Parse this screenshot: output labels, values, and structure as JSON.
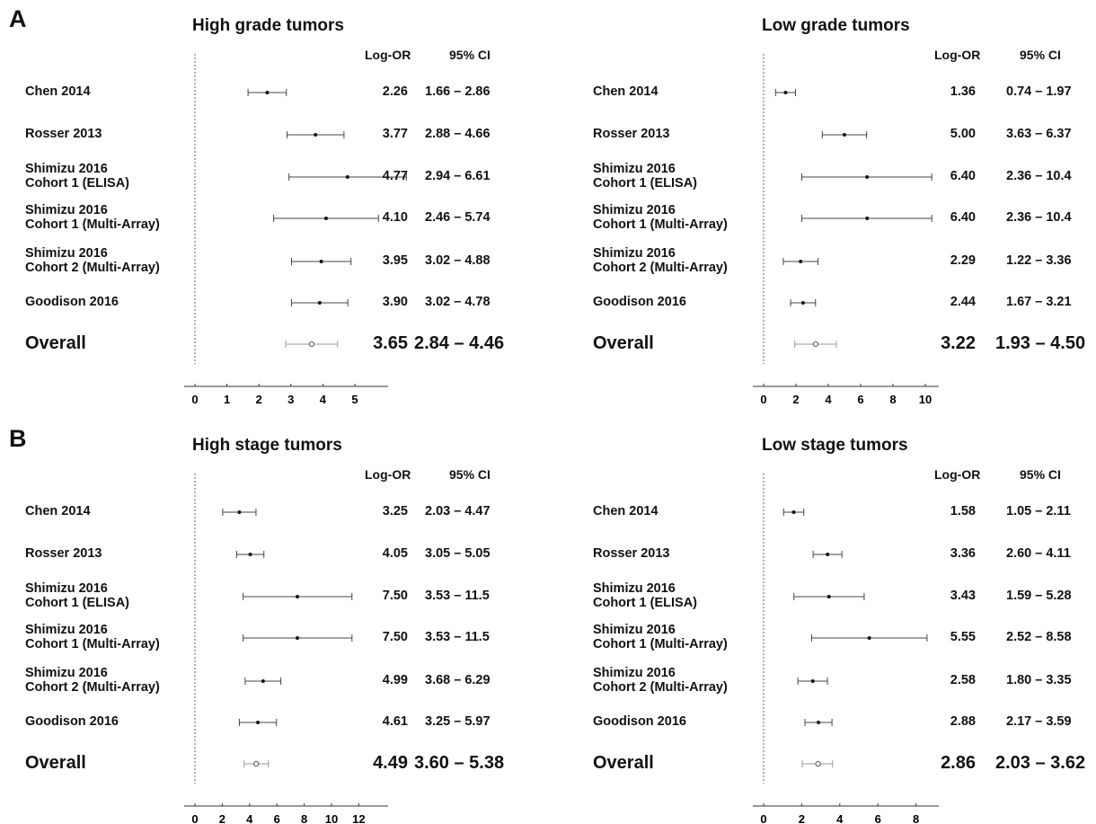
{
  "panels": [
    {
      "letter": "A",
      "forests": [
        {
          "title": "High grade tumors",
          "header_logor": "Log-OR",
          "header_ci": "95% CI",
          "axis_ticks": [
            0,
            1,
            2,
            3,
            4,
            5
          ],
          "axis_tick_labels": [
            "0",
            "1",
            "2",
            "3",
            "4",
            "5"
          ],
          "rows": [
            {
              "study": [
                "Chen 2014"
              ],
              "logor": 2.26,
              "lo": 1.66,
              "hi": 2.86,
              "logor_text": "2.26",
              "ci_text": "1.66 – 2.86"
            },
            {
              "study": [
                "Rosser 2013"
              ],
              "logor": 3.77,
              "lo": 2.88,
              "hi": 4.66,
              "logor_text": "3.77",
              "ci_text": "2.88 – 4.66"
            },
            {
              "study": [
                "Shimizu 2016",
                "Cohort 1 (ELISA)"
              ],
              "logor": 4.77,
              "lo": 2.94,
              "hi": 6.61,
              "logor_text": "4.77",
              "ci_text": "2.94 – 6.61"
            },
            {
              "study": [
                "Shimizu 2016",
                "Cohort 1 (Multi-Array)"
              ],
              "logor": 4.1,
              "lo": 2.46,
              "hi": 5.74,
              "logor_text": "4.10",
              "ci_text": "2.46 – 5.74"
            },
            {
              "study": [
                "Shimizu 2016",
                "Cohort 2 (Multi-Array)"
              ],
              "logor": 3.95,
              "lo": 3.02,
              "hi": 4.88,
              "logor_text": "3.95",
              "ci_text": "3.02 – 4.88"
            },
            {
              "study": [
                "Goodison 2016"
              ],
              "logor": 3.9,
              "lo": 3.02,
              "hi": 4.78,
              "logor_text": "3.90",
              "ci_text": "3.02 – 4.78"
            }
          ],
          "overall": {
            "study": [
              "Overall"
            ],
            "logor": 3.65,
            "lo": 2.84,
            "hi": 4.46,
            "logor_text": "3.65",
            "ci_text": "2.84 – 4.46"
          }
        },
        {
          "title": "Low grade tumors",
          "header_logor": "Log-OR",
          "header_ci": "95% CI",
          "axis_ticks": [
            0,
            2,
            4,
            6,
            8,
            10
          ],
          "axis_tick_labels": [
            "0",
            "2",
            "4",
            "6",
            "8",
            "10"
          ],
          "rows": [
            {
              "study": [
                "Chen 2014"
              ],
              "logor": 1.36,
              "lo": 0.74,
              "hi": 1.97,
              "logor_text": "1.36",
              "ci_text": "0.74 – 1.97"
            },
            {
              "study": [
                "Rosser 2013"
              ],
              "logor": 5.0,
              "lo": 3.63,
              "hi": 6.37,
              "logor_text": "5.00",
              "ci_text": "3.63 – 6.37"
            },
            {
              "study": [
                "Shimizu 2016",
                "Cohort 1 (ELISA)"
              ],
              "logor": 6.4,
              "lo": 2.36,
              "hi": 10.4,
              "logor_text": "6.40",
              "ci_text": "2.36 – 10.4"
            },
            {
              "study": [
                "Shimizu 2016",
                "Cohort 1 (Multi-Array)"
              ],
              "logor": 6.4,
              "lo": 2.36,
              "hi": 10.4,
              "logor_text": "6.40",
              "ci_text": "2.36 – 10.4"
            },
            {
              "study": [
                "Shimizu 2016",
                "Cohort 2 (Multi-Array)"
              ],
              "logor": 2.29,
              "lo": 1.22,
              "hi": 3.36,
              "logor_text": "2.29",
              "ci_text": "1.22 – 3.36"
            },
            {
              "study": [
                "Goodison 2016"
              ],
              "logor": 2.44,
              "lo": 1.67,
              "hi": 3.21,
              "logor_text": "2.44",
              "ci_text": "1.67 – 3.21"
            }
          ],
          "overall": {
            "study": [
              "Overall"
            ],
            "logor": 3.22,
            "lo": 1.93,
            "hi": 4.5,
            "logor_text": "3.22",
            "ci_text": "1.93 – 4.50"
          }
        }
      ]
    },
    {
      "letter": "B",
      "forests": [
        {
          "title": "High stage tumors",
          "header_logor": "Log-OR",
          "header_ci": "95% CI",
          "axis_ticks": [
            0,
            2,
            4,
            6,
            8,
            10,
            12
          ],
          "axis_tick_labels": [
            "0",
            "2",
            "4",
            "6",
            "8",
            "10",
            "12"
          ],
          "rows": [
            {
              "study": [
                "Chen 2014"
              ],
              "logor": 3.25,
              "lo": 2.03,
              "hi": 4.47,
              "logor_text": "3.25",
              "ci_text": "2.03 – 4.47"
            },
            {
              "study": [
                "Rosser 2013"
              ],
              "logor": 4.05,
              "lo": 3.05,
              "hi": 5.05,
              "logor_text": "4.05",
              "ci_text": "3.05 – 5.05"
            },
            {
              "study": [
                "Shimizu 2016",
                "Cohort 1 (ELISA)"
              ],
              "logor": 7.5,
              "lo": 3.53,
              "hi": 11.5,
              "logor_text": "7.50",
              "ci_text": "3.53 – 11.5"
            },
            {
              "study": [
                "Shimizu 2016",
                "Cohort 1 (Multi-Array)"
              ],
              "logor": 7.5,
              "lo": 3.53,
              "hi": 11.5,
              "logor_text": "7.50",
              "ci_text": "3.53 – 11.5"
            },
            {
              "study": [
                "Shimizu 2016",
                "Cohort 2 (Multi-Array)"
              ],
              "logor": 4.99,
              "lo": 3.68,
              "hi": 6.29,
              "logor_text": "4.99",
              "ci_text": "3.68 – 6.29"
            },
            {
              "study": [
                "Goodison 2016"
              ],
              "logor": 4.61,
              "lo": 3.25,
              "hi": 5.97,
              "logor_text": "4.61",
              "ci_text": "3.25 – 5.97"
            }
          ],
          "overall": {
            "study": [
              "Overall"
            ],
            "logor": 4.49,
            "lo": 3.6,
            "hi": 5.38,
            "logor_text": "4.49",
            "ci_text": "3.60 – 5.38"
          }
        },
        {
          "title": "Low stage tumors",
          "header_logor": "Log-OR",
          "header_ci": "95% CI",
          "axis_ticks": [
            0,
            2,
            4,
            6,
            8
          ],
          "axis_tick_labels": [
            "0",
            "2",
            "4",
            "6",
            "8"
          ],
          "rows": [
            {
              "study": [
                "Chen 2014"
              ],
              "logor": 1.58,
              "lo": 1.05,
              "hi": 2.11,
              "logor_text": "1.58",
              "ci_text": "1.05 – 2.11"
            },
            {
              "study": [
                "Rosser 2013"
              ],
              "logor": 3.36,
              "lo": 2.6,
              "hi": 4.11,
              "logor_text": "3.36",
              "ci_text": "2.60 – 4.11"
            },
            {
              "study": [
                "Shimizu 2016",
                "Cohort 1 (ELISA)"
              ],
              "logor": 3.43,
              "lo": 1.59,
              "hi": 5.28,
              "logor_text": "3.43",
              "ci_text": "1.59 – 5.28"
            },
            {
              "study": [
                "Shimizu 2016",
                "Cohort 1 (Multi-Array)"
              ],
              "logor": 5.55,
              "lo": 2.52,
              "hi": 8.58,
              "logor_text": "5.55",
              "ci_text": "2.52 – 8.58"
            },
            {
              "study": [
                "Shimizu 2016",
                "Cohort 2 (Multi-Array)"
              ],
              "logor": 2.58,
              "lo": 1.8,
              "hi": 3.35,
              "logor_text": "2.58",
              "ci_text": "1.80 – 3.35"
            },
            {
              "study": [
                "Goodison 2016"
              ],
              "logor": 2.88,
              "lo": 2.17,
              "hi": 3.59,
              "logor_text": "2.88",
              "ci_text": "2.17 – 3.59"
            }
          ],
          "overall": {
            "study": [
              "Overall"
            ],
            "logor": 2.86,
            "lo": 2.03,
            "hi": 3.62,
            "logor_text": "2.86",
            "ci_text": "2.03 – 3.62"
          }
        }
      ]
    }
  ],
  "chart_data": [
    {
      "type": "scatter",
      "title": "High grade tumors",
      "xlabel": "",
      "ylabel": "",
      "categories": [
        "Chen 2014",
        "Rosser 2013",
        "Shimizu 2016 Cohort 1 (ELISA)",
        "Shimizu 2016 Cohort 1 (Multi-Array)",
        "Shimizu 2016 Cohort 2 (Multi-Array)",
        "Goodison 2016",
        "Overall"
      ],
      "values": [
        2.26,
        3.77,
        4.77,
        4.1,
        3.95,
        3.9,
        3.65
      ],
      "ci_low": [
        1.66,
        2.88,
        2.94,
        2.46,
        3.02,
        3.02,
        2.84
      ],
      "ci_high": [
        2.86,
        4.66,
        6.61,
        5.74,
        4.88,
        4.78,
        4.46
      ]
    },
    {
      "type": "scatter",
      "title": "Low grade tumors",
      "xlabel": "",
      "ylabel": "",
      "categories": [
        "Chen 2014",
        "Rosser 2013",
        "Shimizu 2016 Cohort 1 (ELISA)",
        "Shimizu 2016 Cohort 1 (Multi-Array)",
        "Shimizu 2016 Cohort 2 (Multi-Array)",
        "Goodison 2016",
        "Overall"
      ],
      "values": [
        1.36,
        5.0,
        6.4,
        6.4,
        2.29,
        2.44,
        3.22
      ],
      "ci_low": [
        0.74,
        3.63,
        2.36,
        2.36,
        1.22,
        1.67,
        1.93
      ],
      "ci_high": [
        1.97,
        6.37,
        10.4,
        10.4,
        3.36,
        3.21,
        4.5
      ]
    },
    {
      "type": "scatter",
      "title": "High stage tumors",
      "xlabel": "",
      "ylabel": "",
      "categories": [
        "Chen 2014",
        "Rosser 2013",
        "Shimizu 2016 Cohort 1 (ELISA)",
        "Shimizu 2016 Cohort 1 (Multi-Array)",
        "Shimizu 2016 Cohort 2 (Multi-Array)",
        "Goodison 2016",
        "Overall"
      ],
      "values": [
        3.25,
        4.05,
        7.5,
        7.5,
        4.99,
        4.61,
        4.49
      ],
      "ci_low": [
        2.03,
        3.05,
        3.53,
        3.53,
        3.68,
        3.25,
        3.6
      ],
      "ci_high": [
        4.47,
        5.05,
        11.5,
        11.5,
        6.29,
        5.97,
        5.38
      ]
    },
    {
      "type": "scatter",
      "title": "Low stage tumors",
      "xlabel": "",
      "ylabel": "",
      "categories": [
        "Chen 2014",
        "Rosser 2013",
        "Shimizu 2016 Cohort 1 (ELISA)",
        "Shimizu 2016 Cohort 1 (Multi-Array)",
        "Shimizu 2016 Cohort 2 (Multi-Array)",
        "Goodison 2016",
        "Overall"
      ],
      "values": [
        1.58,
        3.36,
        3.43,
        5.55,
        2.58,
        2.88,
        2.86
      ],
      "ci_low": [
        1.05,
        2.6,
        1.59,
        2.52,
        1.8,
        2.17,
        2.03
      ],
      "ci_high": [
        2.11,
        4.11,
        5.28,
        8.58,
        3.35,
        3.59,
        3.62
      ]
    }
  ]
}
